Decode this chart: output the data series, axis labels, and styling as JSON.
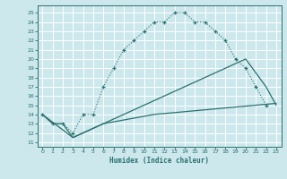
{
  "xlabel": "Humidex (Indice chaleur)",
  "bg_color": "#cce8ec",
  "line_color": "#2a7070",
  "grid_color": "#ffffff",
  "xlim": [
    -0.5,
    23.5
  ],
  "ylim": [
    10.5,
    25.8
  ],
  "xticks": [
    0,
    1,
    2,
    3,
    4,
    5,
    6,
    7,
    8,
    9,
    10,
    11,
    12,
    13,
    14,
    15,
    16,
    17,
    18,
    19,
    20,
    21,
    22,
    23
  ],
  "yticks": [
    11,
    12,
    13,
    14,
    15,
    16,
    17,
    18,
    19,
    20,
    21,
    22,
    23,
    24,
    25
  ],
  "line1_x": [
    0,
    1,
    2,
    3,
    4,
    5,
    6,
    7,
    8,
    9,
    10,
    11,
    12,
    13,
    14,
    15,
    16,
    17,
    18,
    19,
    20,
    21,
    22
  ],
  "line1_y": [
    14,
    13,
    13,
    12,
    14,
    14,
    17,
    19,
    21,
    22,
    23,
    24,
    24,
    25,
    25,
    24,
    24,
    23,
    22,
    20,
    19,
    17,
    15
  ],
  "line2_x": [
    0,
    1,
    2,
    3,
    4,
    5,
    6,
    7,
    8,
    9,
    10,
    11,
    12,
    13,
    14,
    15,
    16,
    17,
    18,
    19,
    20,
    21,
    22,
    23
  ],
  "line2_y": [
    14,
    13,
    13,
    11.5,
    12,
    12.5,
    13,
    13.2,
    13.4,
    13.6,
    13.8,
    14,
    14.1,
    14.2,
    14.3,
    14.4,
    14.5,
    14.6,
    14.7,
    14.8,
    14.9,
    15.0,
    15.1,
    15.2
  ],
  "line3_x": [
    0,
    3,
    20,
    21,
    22,
    23
  ],
  "line3_y": [
    14,
    11.5,
    20,
    18.5,
    17,
    15
  ]
}
